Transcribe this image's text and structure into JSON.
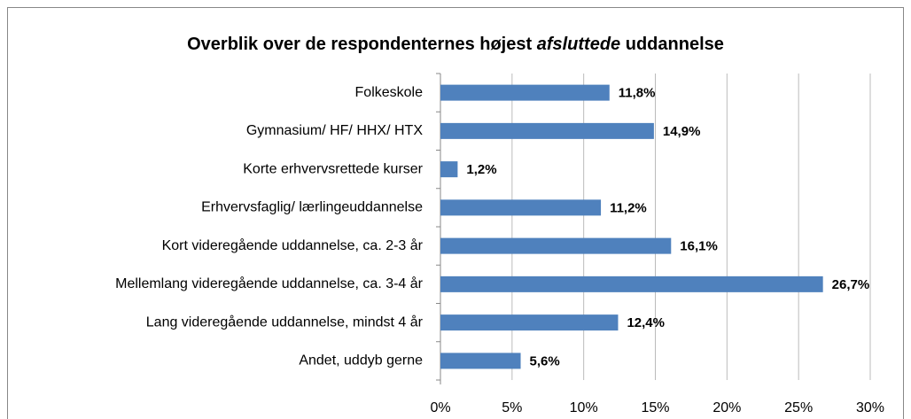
{
  "chart_data": {
    "type": "bar",
    "orientation": "horizontal",
    "title": [
      "Overblik over de respondenternes højest",
      "afsluttede",
      "uddannelse"
    ],
    "categories": [
      "Folkeskole",
      "Gymnasium/ HF/ HHX/ HTX",
      "Korte erhvervsrettede kurser",
      "Erhvervsfaglig/ lærlingeuddannelse",
      "Kort videregående uddannelse, ca. 2-3 år",
      "Mellemlang videregående uddannelse, ca. 3-4 år",
      "Lang videregående uddannelse, mindst 4 år",
      "Andet, uddyb gerne"
    ],
    "values": [
      11.8,
      14.9,
      1.2,
      11.2,
      16.1,
      26.7,
      12.4,
      5.6
    ],
    "value_labels": [
      "11,8%",
      "14,9%",
      "1,2%",
      "11,2%",
      "16,1%",
      "26,7%",
      "12,4%",
      "5,6%"
    ],
    "color": "#4f81bd",
    "xlim": [
      0,
      30
    ],
    "xticks": [
      {
        "value": 0,
        "label": "0%"
      },
      {
        "value": 5,
        "label": "5%"
      },
      {
        "value": 10,
        "label": "10%"
      },
      {
        "value": 15,
        "label": "15%"
      },
      {
        "value": 20,
        "label": "20%"
      },
      {
        "value": 25,
        "label": "25%"
      },
      {
        "value": 30,
        "label": "30%"
      }
    ],
    "grid": true
  }
}
